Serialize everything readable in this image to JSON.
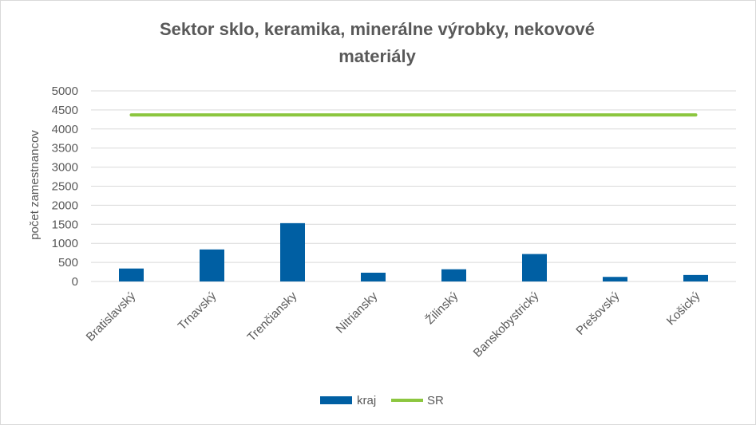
{
  "chart_data": {
    "type": "bar",
    "title_lines": [
      "Sektor sklo, keramika, minerálne výrobky, nekovové",
      "materiály"
    ],
    "ylabel": "počet zamestnancov",
    "xlabel": "",
    "ylim": [
      0,
      5000
    ],
    "yticks": [
      0,
      500,
      1000,
      1500,
      2000,
      2500,
      3000,
      3500,
      4000,
      4500,
      5000
    ],
    "ytick_labels": [
      "0",
      "500",
      "1000",
      "1500",
      "2000",
      "2500",
      "3000",
      "3500",
      "4000",
      "4500",
      "5000"
    ],
    "grid": true,
    "categories": [
      "Bratislavský",
      "Trnavský",
      "Trenčiansky",
      "Nitriansky",
      "Žilinský",
      "Banskobystrický",
      "Prešovský",
      "Košický"
    ],
    "series": [
      {
        "name": "kraj",
        "type": "bar",
        "color": "#005fa3",
        "values": [
          340,
          840,
          1530,
          230,
          320,
          720,
          120,
          170
        ]
      },
      {
        "name": "SR",
        "type": "line",
        "color": "#8cc63f",
        "values": [
          4370,
          4370,
          4370,
          4370,
          4370,
          4370,
          4370,
          4370
        ]
      }
    ],
    "legend_position": "bottom"
  }
}
